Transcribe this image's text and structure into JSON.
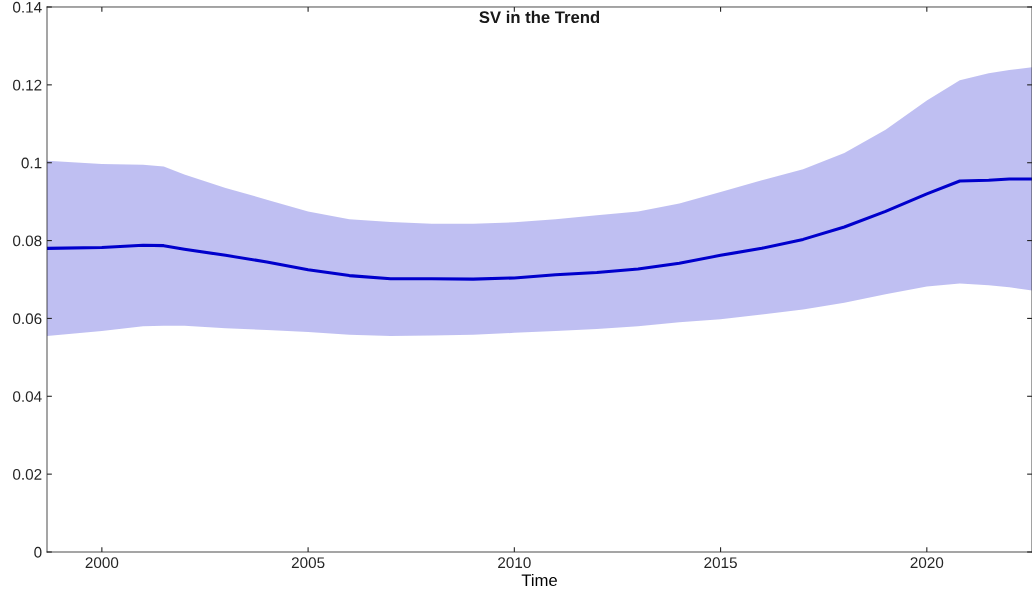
{
  "chart_data": {
    "type": "line",
    "title": "SV in the Trend",
    "xlabel": "Time",
    "x": [
      1998.67,
      2000,
      2001,
      2001.5,
      2002,
      2003,
      2004,
      2005,
      2006,
      2007,
      2008,
      2009,
      2010,
      2011,
      2012,
      2013,
      2014,
      2015,
      2016,
      2017,
      2018,
      2019,
      2020,
      2020.8,
      2021.5,
      2022,
      2022.55
    ],
    "series": [
      {
        "color": "#0000cc",
        "values": [
          0.078,
          0.0782,
          0.0788,
          0.0787,
          0.0778,
          0.0762,
          0.0745,
          0.0725,
          0.071,
          0.0702,
          0.0702,
          0.0701,
          0.0704,
          0.0712,
          0.0718,
          0.0727,
          0.0742,
          0.0762,
          0.078,
          0.0803,
          0.0835,
          0.0875,
          0.092,
          0.0953,
          0.0955,
          0.0958,
          0.0958
        ],
        "upper": [
          0.1005,
          0.0997,
          0.0995,
          0.099,
          0.097,
          0.0935,
          0.0905,
          0.0875,
          0.0855,
          0.0848,
          0.0843,
          0.0843,
          0.0847,
          0.0855,
          0.0865,
          0.0875,
          0.0895,
          0.0925,
          0.0955,
          0.0983,
          0.1025,
          0.1085,
          0.116,
          0.1212,
          0.123,
          0.1238,
          0.1245
        ],
        "lower": [
          0.0555,
          0.0568,
          0.058,
          0.0581,
          0.0581,
          0.0575,
          0.057,
          0.0565,
          0.0558,
          0.0555,
          0.0556,
          0.0558,
          0.0563,
          0.0568,
          0.0573,
          0.058,
          0.059,
          0.0598,
          0.061,
          0.0623,
          0.064,
          0.0662,
          0.0682,
          0.069,
          0.0685,
          0.068,
          0.0672
        ],
        "line_style": "solid"
      }
    ],
    "xlim": [
      1998.67,
      2022.55
    ],
    "xticks": [
      2000,
      2005,
      2010,
      2015,
      2020
    ],
    "ylim": [
      0,
      0.14
    ],
    "yticks": [
      {
        "value": 0,
        "label": "0"
      },
      0.02,
      0.04,
      0.06,
      0.08,
      0.1,
      0.12,
      0.14
    ],
    "grid": false,
    "legend": false,
    "marker": "none"
  }
}
